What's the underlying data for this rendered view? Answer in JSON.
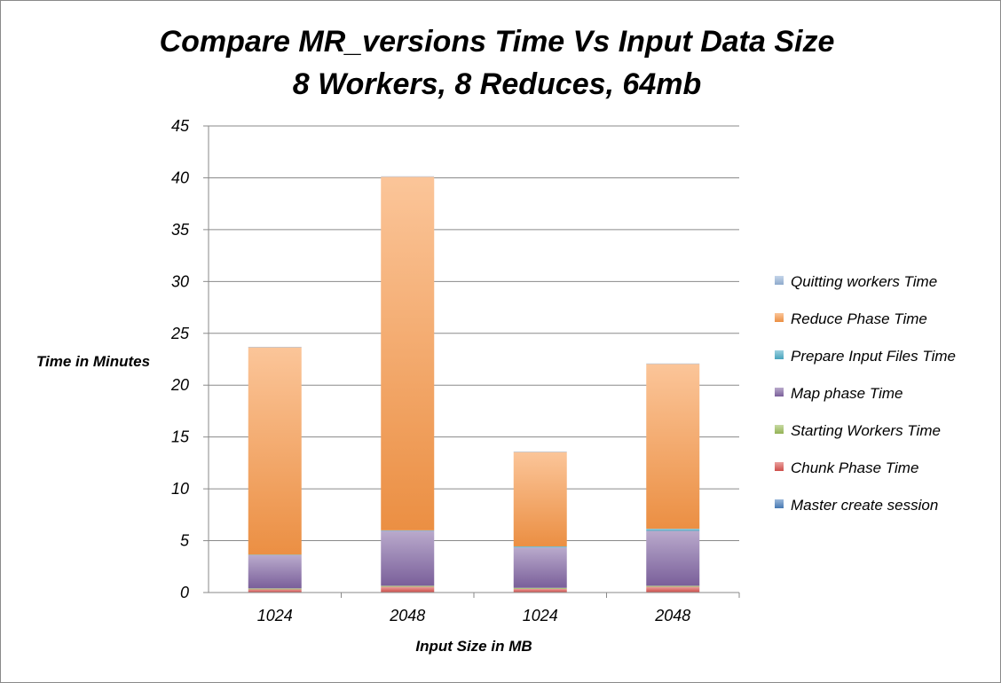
{
  "chart_data": {
    "type": "bar",
    "stacked": true,
    "title_line1": "Compare MR_versions Time Vs Input Data Size",
    "title_line2": "8 Workers, 8 Reduces, 64mb",
    "xlabel": "Input Size in MB",
    "ylabel": "Time in Minutes",
    "ylim": [
      0,
      45
    ],
    "yticks": [
      0,
      5,
      10,
      15,
      20,
      25,
      30,
      35,
      40,
      45
    ],
    "grid": true,
    "legend_position": "right",
    "categories": [
      "1024",
      "2048",
      "1024",
      "2048"
    ],
    "series": [
      {
        "name": "Master create session",
        "color": "#4a7ebb",
        "values": [
          0.05,
          0.05,
          0.05,
          0.05
        ]
      },
      {
        "name": "Chunk Phase Time",
        "color": "#d9534f",
        "values": [
          0.25,
          0.5,
          0.3,
          0.5
        ]
      },
      {
        "name": "Starting Workers Time",
        "color": "#9bbb59",
        "values": [
          0.1,
          0.1,
          0.1,
          0.1
        ]
      },
      {
        "name": "Map phase Time",
        "color": "#8064a2",
        "values": [
          3.2,
          5.3,
          3.9,
          5.3
        ]
      },
      {
        "name": "Prepare Input Files Time",
        "color": "#4bacc6",
        "values": [
          0.05,
          0.05,
          0.1,
          0.2
        ]
      },
      {
        "name": "Reduce Phase Time",
        "color": "#f79646",
        "values": [
          20.0,
          34.1,
          9.1,
          15.9
        ]
      },
      {
        "name": "Quitting workers Time",
        "color": "#95b3d7",
        "values": [
          0.05,
          0.05,
          0.05,
          0.05
        ]
      }
    ]
  }
}
